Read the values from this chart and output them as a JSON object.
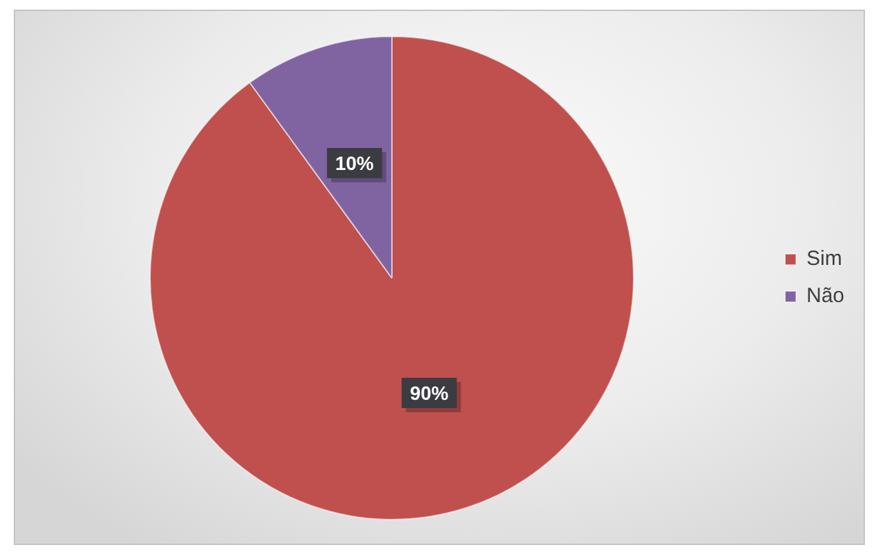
{
  "chart_data": {
    "type": "pie",
    "categories": [
      "Sim",
      "Não"
    ],
    "values": [
      90,
      10
    ],
    "colors": [
      "#c0504d",
      "#8064a2"
    ],
    "value_labels": [
      "90%",
      "10%"
    ],
    "legend": "right"
  }
}
